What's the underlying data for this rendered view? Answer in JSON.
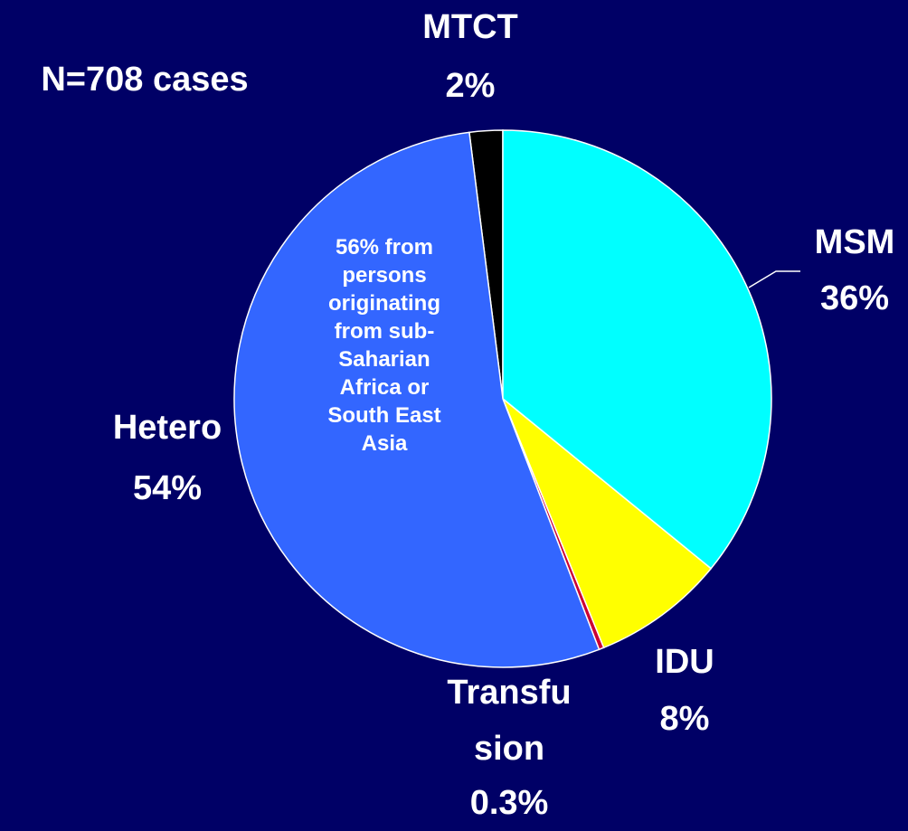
{
  "chart_data": {
    "type": "pie",
    "categories": [
      "MTCT",
      "MSM",
      "IDU",
      "Transfusion",
      "Hetero"
    ],
    "values": [
      2,
      36,
      8,
      0.3,
      54
    ],
    "value_labels": [
      "2%",
      "36%",
      "8%",
      "0.3%",
      "54%"
    ],
    "colors": [
      "#000000",
      "#00ffff",
      "#ffff00",
      "#cc0033",
      "#3366ff"
    ],
    "annotations": [
      "N=708 cases",
      "56% from persons originating from sub-Saharian Africa or South East Asia"
    ]
  }
}
